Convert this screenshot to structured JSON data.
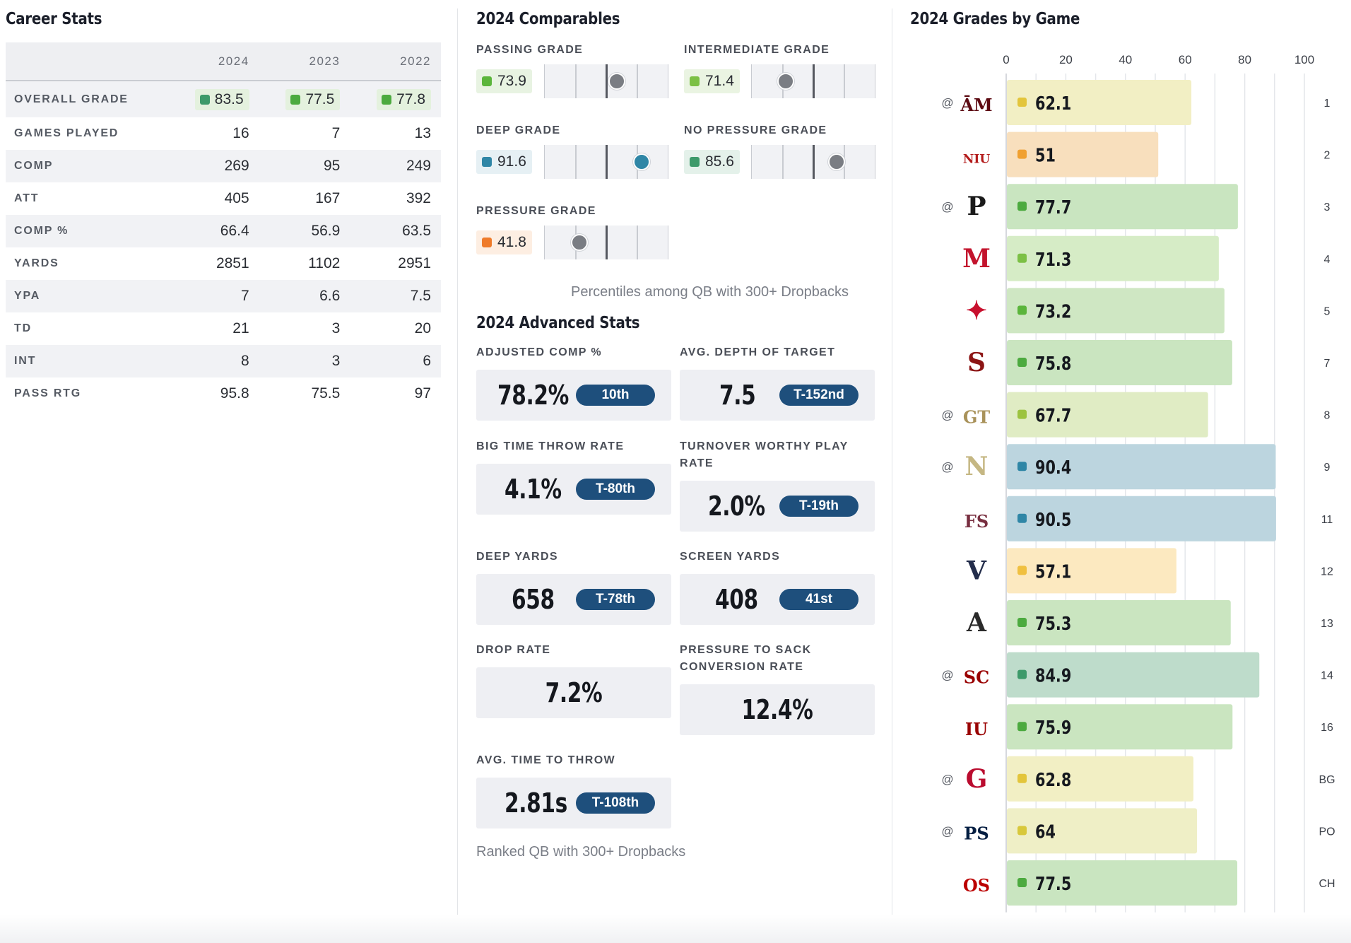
{
  "career": {
    "title": "Career Stats",
    "years": [
      "2024",
      "2023",
      "2022"
    ],
    "grade_row": {
      "label": "OVERALL GRADE",
      "values": [
        "83.5",
        "77.5",
        "77.8"
      ],
      "colors": [
        "#3d9a6a",
        "#4caa3f",
        "#4caa3f"
      ]
    },
    "rows": [
      {
        "label": "GAMES PLAYED",
        "values": [
          "16",
          "7",
          "13"
        ]
      },
      {
        "label": "COMP",
        "values": [
          "269",
          "95",
          "249"
        ]
      },
      {
        "label": "ATT",
        "values": [
          "405",
          "167",
          "392"
        ]
      },
      {
        "label": "COMP %",
        "values": [
          "66.4",
          "56.9",
          "63.5"
        ]
      },
      {
        "label": "YARDS",
        "values": [
          "2851",
          "1102",
          "2951"
        ]
      },
      {
        "label": "YPA",
        "values": [
          "7",
          "6.6",
          "7.5"
        ]
      },
      {
        "label": "TD",
        "values": [
          "21",
          "3",
          "20"
        ]
      },
      {
        "label": "INT",
        "values": [
          "8",
          "3",
          "6"
        ]
      },
      {
        "label": "PASS RTG",
        "values": [
          "95.8",
          "75.5",
          "97"
        ]
      }
    ]
  },
  "comparables": {
    "title": "2024 Comparables",
    "items": [
      {
        "label": "PASSING GRADE",
        "value": "73.9",
        "color": "#5bb53b",
        "chip_bg": "#e8f3e2",
        "percentile": 0.58
      },
      {
        "label": "INTERMEDIATE GRADE",
        "value": "71.4",
        "color": "#7cc045",
        "chip_bg": "#eaf4e2",
        "percentile": 0.27
      },
      {
        "label": "DEEP GRADE",
        "value": "91.6",
        "color": "#2f86a6",
        "chip_bg": "#e6f0f4",
        "percentile": 0.78
      },
      {
        "label": "NO PRESSURE GRADE",
        "value": "85.6",
        "color": "#3d9a6a",
        "chip_bg": "#e4f1ea",
        "percentile": 0.68
      },
      {
        "label": "PRESSURE GRADE",
        "value": "41.8",
        "color": "#ef7b2a",
        "chip_bg": "#fdeee2",
        "percentile": 0.28
      }
    ],
    "note": "Percentiles among QB with 300+ Dropbacks"
  },
  "advanced": {
    "title": "2024 Advanced Stats",
    "items": [
      {
        "label": "ADJUSTED COMP %",
        "value": "78.2%",
        "rank": "10th"
      },
      {
        "label": "AVG. DEPTH OF TARGET",
        "value": "7.5",
        "rank": "T-152nd"
      },
      {
        "label": "BIG TIME THROW RATE",
        "value": "4.1%",
        "rank": "T-80th"
      },
      {
        "label": "TURNOVER WORTHY PLAY RATE",
        "value": "2.0%",
        "rank": "T-19th"
      },
      {
        "label": "DEEP YARDS",
        "value": "658",
        "rank": "T-78th"
      },
      {
        "label": "SCREEN YARDS",
        "value": "408",
        "rank": "41st"
      },
      {
        "label": "DROP RATE",
        "value": "7.2%",
        "rank": ""
      },
      {
        "label": "PRESSURE TO SACK CONVERSION RATE",
        "value": "12.4%",
        "rank": ""
      },
      {
        "label": "AVG. TIME TO THROW",
        "value": "2.81s",
        "rank": "T-108th"
      }
    ],
    "note": "Ranked QB with 300+ Dropbacks"
  },
  "chart_data": {
    "type": "bar",
    "orientation": "horizontal",
    "title": "2024 Grades by Game",
    "xlim": [
      0,
      100
    ],
    "ticks": [
      "0",
      "20",
      "40",
      "60",
      "80",
      "100"
    ],
    "grid": true,
    "games": [
      {
        "week": "1",
        "away": true,
        "opponent_icon": "texas-am-logo-icon",
        "mark": "ĀM",
        "mark_color": "#5c0a12",
        "grade": 62.1,
        "label": "62.1",
        "dot": "#e3c53b",
        "bar": "#f2efc4"
      },
      {
        "week": "2",
        "away": false,
        "opponent_icon": "niu-huskies-logo-icon",
        "mark": "NIU",
        "mark_color": "#b31b1b",
        "grade": 51,
        "label": "51",
        "dot": "#f0a030",
        "bar": "#f8dfbd"
      },
      {
        "week": "3",
        "away": true,
        "opponent_icon": "purdue-logo-icon",
        "mark": "P",
        "mark_color": "#1a1a1a",
        "grade": 77.7,
        "label": "77.7",
        "dot": "#4caa3f",
        "bar": "#c9e5c0"
      },
      {
        "week": "4",
        "away": false,
        "opponent_icon": "miami-oh-logo-icon",
        "mark": "M",
        "mark_color": "#c3142d",
        "grade": 71.3,
        "label": "71.3",
        "dot": "#7cc045",
        "bar": "#d6ecc6"
      },
      {
        "week": "5",
        "away": false,
        "opponent_icon": "louisville-logo-icon",
        "mark": "✦",
        "mark_color": "#c8102e",
        "grade": 73.2,
        "label": "73.2",
        "dot": "#5bb53b",
        "bar": "#cfe7c3"
      },
      {
        "week": "7",
        "away": false,
        "opponent_icon": "stanford-logo-icon",
        "mark": "S",
        "mark_color": "#8c1515",
        "grade": 75.8,
        "label": "75.8",
        "dot": "#4caa3f",
        "bar": "#cae5c0"
      },
      {
        "week": "8",
        "away": true,
        "opponent_icon": "georgia-tech-logo-icon",
        "mark": "GT",
        "mark_color": "#a9925a",
        "grade": 67.7,
        "label": "67.7",
        "dot": "#9cc33f",
        "bar": "#e0ecc4"
      },
      {
        "week": "9",
        "away": true,
        "opponent_icon": "navy-logo-icon",
        "mark": "N",
        "mark_color": "#c5b783",
        "grade": 90.4,
        "label": "90.4",
        "dot": "#2f86a6",
        "bar": "#bcd5df"
      },
      {
        "week": "11",
        "away": false,
        "opponent_icon": "florida-state-logo-icon",
        "mark": "FS",
        "mark_color": "#782f40",
        "grade": 90.5,
        "label": "90.5",
        "dot": "#2f86a6",
        "bar": "#bcd5df"
      },
      {
        "week": "12",
        "away": false,
        "opponent_icon": "virginia-logo-icon",
        "mark": "V",
        "mark_color": "#232d4b",
        "grade": 57.1,
        "label": "57.1",
        "dot": "#f0c040",
        "bar": "#fce9c0"
      },
      {
        "week": "13",
        "away": false,
        "opponent_icon": "army-logo-icon",
        "mark": "A",
        "mark_color": "#2a2a2a",
        "grade": 75.3,
        "label": "75.3",
        "dot": "#4caa3f",
        "bar": "#cae5c0"
      },
      {
        "week": "14",
        "away": true,
        "opponent_icon": "usc-logo-icon",
        "mark": "SC",
        "mark_color": "#990000",
        "grade": 84.9,
        "label": "84.9",
        "dot": "#3d9a6a",
        "bar": "#bedccb"
      },
      {
        "week": "16",
        "away": false,
        "opponent_icon": "indiana-logo-icon",
        "mark": "IU",
        "mark_color": "#990000",
        "grade": 75.9,
        "label": "75.9",
        "dot": "#4caa3f",
        "bar": "#cae5c0"
      },
      {
        "week": "BG",
        "away": true,
        "opponent_icon": "georgia-logo-icon",
        "mark": "G",
        "mark_color": "#ba0c2f",
        "grade": 62.8,
        "label": "62.8",
        "dot": "#e3c53b",
        "bar": "#f2efc4"
      },
      {
        "week": "PO",
        "away": true,
        "opponent_icon": "penn-state-logo-icon",
        "mark": "PS",
        "mark_color": "#041e42",
        "grade": 64,
        "label": "64",
        "dot": "#d8c83b",
        "bar": "#efefc6"
      },
      {
        "week": "CH",
        "away": false,
        "opponent_icon": "ohio-state-logo-icon",
        "mark": "OS",
        "mark_color": "#bb0000",
        "grade": 77.5,
        "label": "77.5",
        "dot": "#4caa3f",
        "bar": "#c9e5c0"
      }
    ],
    "away_marker": "@"
  }
}
